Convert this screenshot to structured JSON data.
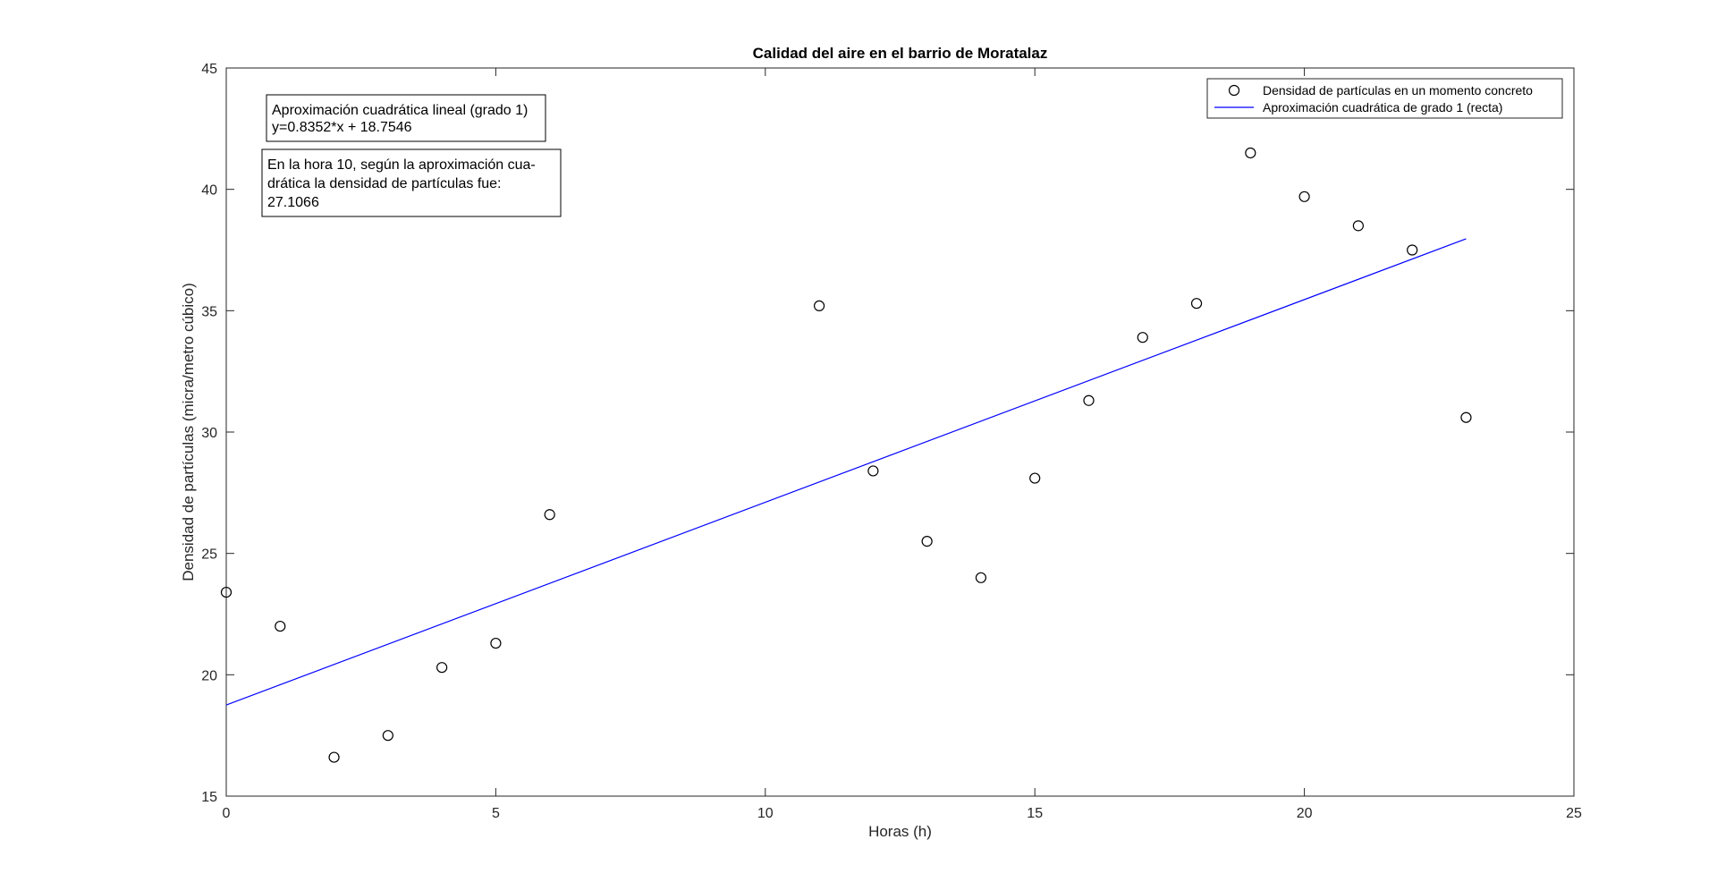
{
  "chart_data": {
    "type": "scatter",
    "title": "Calidad del aire en el barrio de Moratalaz",
    "xlabel": "Horas (h)",
    "ylabel": "Densidad de partículas (micra/metro cúbico)",
    "xlim": [
      0,
      25
    ],
    "ylim": [
      15,
      45
    ],
    "xticks": [
      0,
      5,
      10,
      15,
      20,
      25
    ],
    "yticks": [
      15,
      20,
      25,
      30,
      35,
      40,
      45
    ],
    "grid": false,
    "legend_position": "top-right",
    "series": [
      {
        "name": "Densidad de partículas en un momento concreto",
        "kind": "scatter",
        "marker": "circle",
        "color": "#000000",
        "points": [
          {
            "x": 0,
            "y": 23.4
          },
          {
            "x": 1,
            "y": 22.0
          },
          {
            "x": 2,
            "y": 16.6
          },
          {
            "x": 3,
            "y": 17.5
          },
          {
            "x": 4,
            "y": 20.3
          },
          {
            "x": 5,
            "y": 21.3
          },
          {
            "x": 6,
            "y": 26.6
          },
          {
            "x": 11,
            "y": 35.2
          },
          {
            "x": 12,
            "y": 28.4
          },
          {
            "x": 13,
            "y": 25.5
          },
          {
            "x": 14,
            "y": 24.0
          },
          {
            "x": 15,
            "y": 28.1
          },
          {
            "x": 16,
            "y": 31.3
          },
          {
            "x": 17,
            "y": 33.9
          },
          {
            "x": 18,
            "y": 35.3
          },
          {
            "x": 19,
            "y": 41.5
          },
          {
            "x": 20,
            "y": 39.7
          },
          {
            "x": 21,
            "y": 38.5
          },
          {
            "x": 22,
            "y": 37.5
          },
          {
            "x": 23,
            "y": 30.6
          }
        ]
      },
      {
        "name": "Aproximación cuadrática de grado 1 (recta)",
        "kind": "line",
        "color": "#0000ff",
        "points": [
          {
            "x": 0,
            "y": 18.7546
          },
          {
            "x": 23,
            "y": 37.9642
          }
        ]
      }
    ],
    "annotations": [
      {
        "lines": [
          "Aproximación cuadrática lineal (grado 1)",
          "y=0.8352*x + 18.7546"
        ]
      },
      {
        "lines": [
          "En la hora 10, según la aproximación cua-",
          "drática la densidad de partículas fue:",
          "27.1066"
        ]
      }
    ]
  }
}
